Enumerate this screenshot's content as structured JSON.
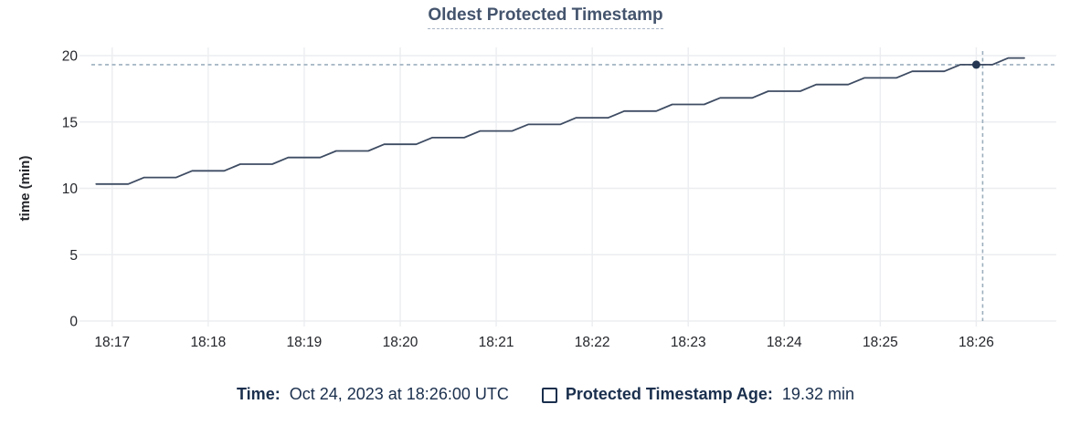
{
  "title": "Oldest Protected Timestamp",
  "colors": {
    "title": "#44546d",
    "axis_text": "#24262b",
    "grid": "#ebedf0",
    "line": "#3e4c63",
    "dot": "#253752",
    "crosshair": "#9cafbd",
    "legend_text": "#1a2f4d"
  },
  "chart_data": {
    "type": "line",
    "title": "Oldest Protected Timestamp",
    "xlabel": "",
    "ylabel": "time (min)",
    "ylim": [
      0,
      20
    ],
    "y_ticks": [
      0,
      5,
      10,
      15,
      20
    ],
    "x_tick_labels": [
      "18:17",
      "18:18",
      "18:19",
      "18:20",
      "18:21",
      "18:22",
      "18:23",
      "18:24",
      "18:25",
      "18:26"
    ],
    "x_tick_seconds": [
      60,
      120,
      180,
      240,
      300,
      360,
      420,
      480,
      540,
      600
    ],
    "x_domain_seconds": [
      43,
      650
    ],
    "x_time_base": "18:16:00",
    "grid": true,
    "legend_position": "bottom",
    "series": [
      {
        "name": "Protected Timestamp Age",
        "unit": "min",
        "points": [
          [
            50,
            10.32
          ],
          [
            60,
            10.32
          ],
          [
            70,
            10.32
          ],
          [
            80,
            10.82
          ],
          [
            90,
            10.82
          ],
          [
            100,
            10.82
          ],
          [
            110,
            11.32
          ],
          [
            120,
            11.32
          ],
          [
            130,
            11.32
          ],
          [
            140,
            11.82
          ],
          [
            150,
            11.82
          ],
          [
            160,
            11.82
          ],
          [
            170,
            12.32
          ],
          [
            180,
            12.32
          ],
          [
            190,
            12.32
          ],
          [
            200,
            12.82
          ],
          [
            210,
            12.82
          ],
          [
            220,
            12.82
          ],
          [
            230,
            13.32
          ],
          [
            240,
            13.32
          ],
          [
            250,
            13.32
          ],
          [
            260,
            13.82
          ],
          [
            270,
            13.82
          ],
          [
            280,
            13.82
          ],
          [
            290,
            14.32
          ],
          [
            300,
            14.32
          ],
          [
            310,
            14.32
          ],
          [
            320,
            14.82
          ],
          [
            330,
            14.82
          ],
          [
            340,
            14.82
          ],
          [
            350,
            15.32
          ],
          [
            360,
            15.32
          ],
          [
            370,
            15.32
          ],
          [
            380,
            15.82
          ],
          [
            390,
            15.82
          ],
          [
            400,
            15.82
          ],
          [
            410,
            16.32
          ],
          [
            420,
            16.32
          ],
          [
            430,
            16.32
          ],
          [
            440,
            16.82
          ],
          [
            450,
            16.82
          ],
          [
            460,
            16.82
          ],
          [
            470,
            17.32
          ],
          [
            480,
            17.32
          ],
          [
            490,
            17.32
          ],
          [
            500,
            17.82
          ],
          [
            510,
            17.82
          ],
          [
            520,
            17.82
          ],
          [
            530,
            18.32
          ],
          [
            540,
            18.32
          ],
          [
            550,
            18.32
          ],
          [
            560,
            18.82
          ],
          [
            570,
            18.82
          ],
          [
            580,
            18.82
          ],
          [
            590,
            19.32
          ],
          [
            600,
            19.32
          ],
          [
            610,
            19.32
          ],
          [
            620,
            19.82
          ],
          [
            630,
            19.82
          ]
        ]
      }
    ],
    "hover": {
      "time": "Oct 24, 2023 at 18:26:00 UTC",
      "t_seconds": 600,
      "value_min": 19.32,
      "crosshair_t_seconds": 604
    }
  },
  "footer": {
    "time_label": "Time:",
    "time_value": "Oct 24, 2023 at 18:26:00 UTC",
    "series_label": "Protected Timestamp Age:",
    "series_value": "19.32 min"
  }
}
